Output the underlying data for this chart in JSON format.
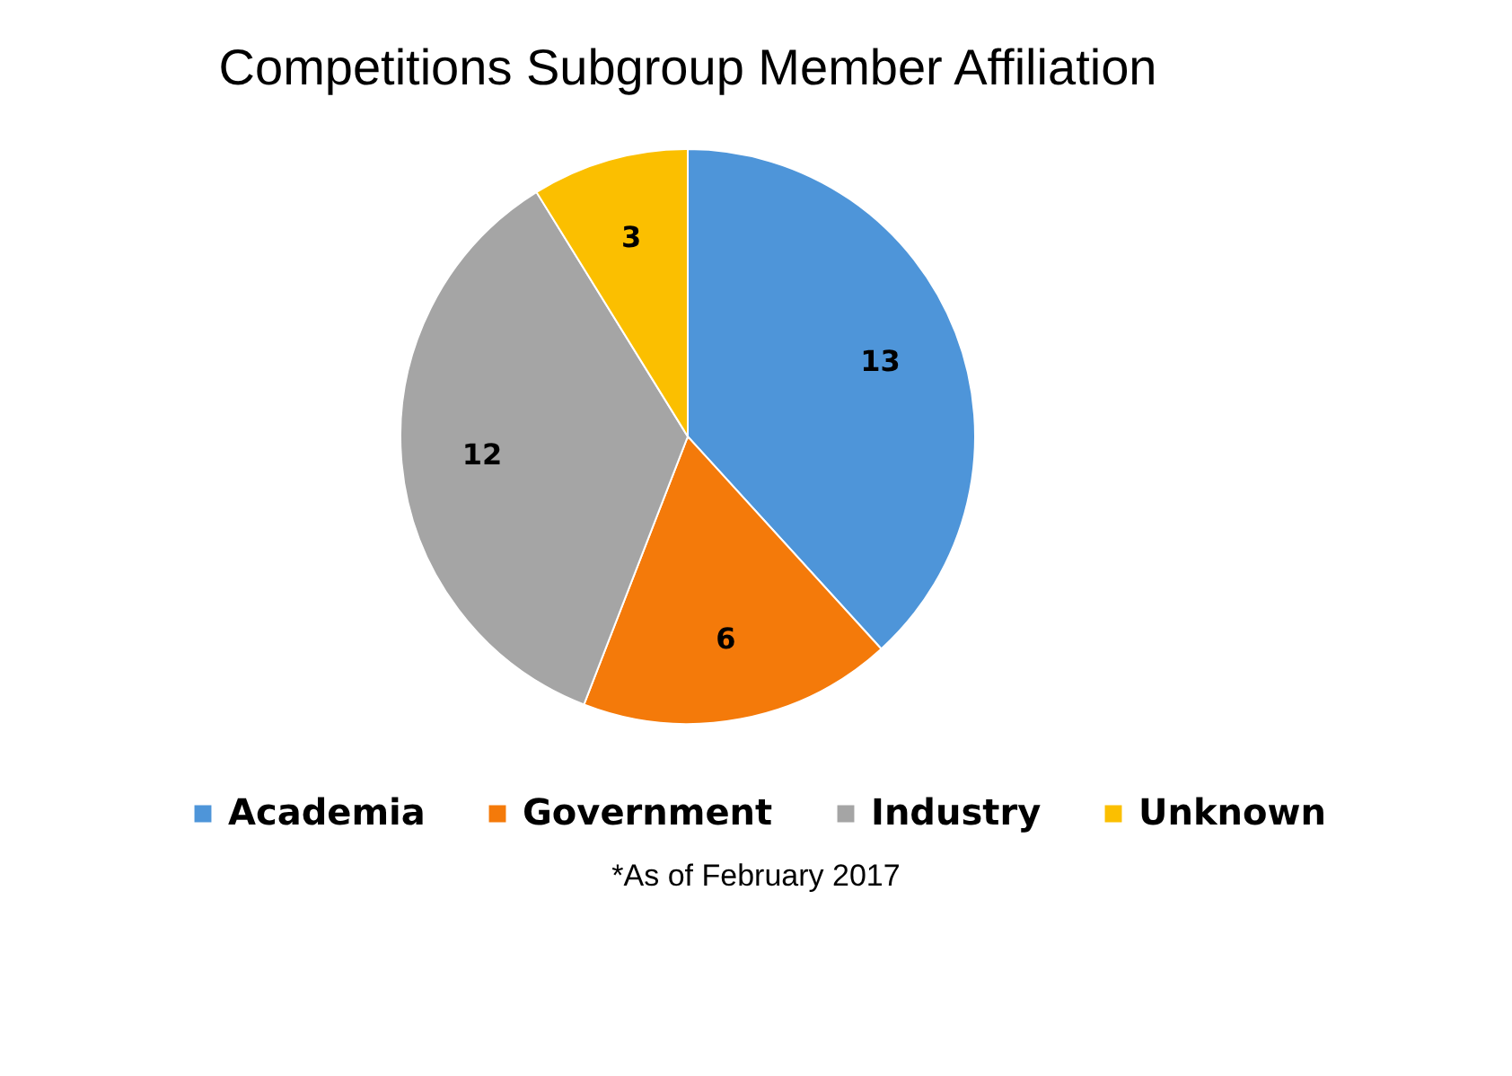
{
  "chart_data": {
    "type": "pie",
    "title": "Competitions Subgroup Member Affiliation",
    "categories": [
      "Academia",
      "Government",
      "Industry",
      "Unknown"
    ],
    "values": [
      13,
      6,
      12,
      3
    ],
    "colors": [
      "#4e95d9",
      "#f47a0a",
      "#a5a5a5",
      "#fbbf00"
    ],
    "data_labels": true,
    "legend": "bottom",
    "annotations": [
      "*As of February 2017"
    ]
  }
}
